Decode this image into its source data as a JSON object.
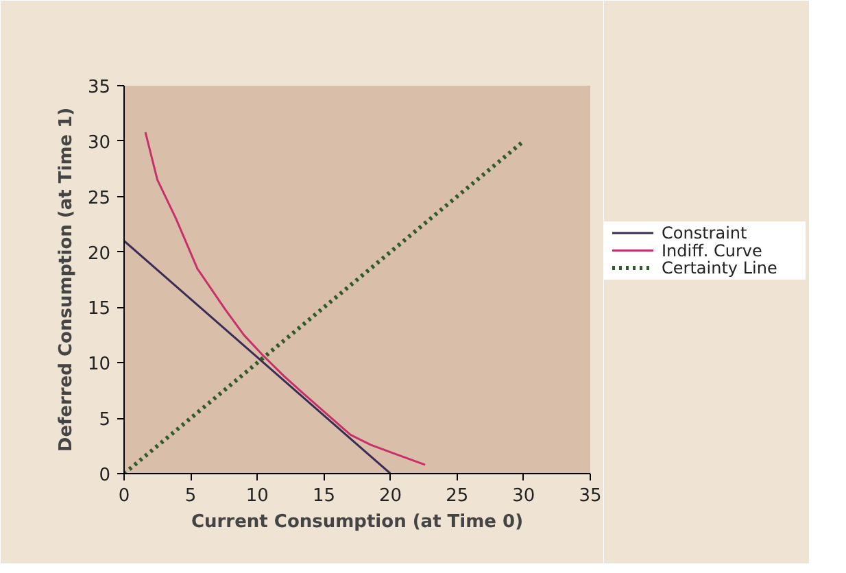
{
  "chart_data": {
    "type": "line",
    "xlabel": "Current Consumption (at Time 0)",
    "ylabel": "Deferred Consumption (at Time 1)",
    "xlim": [
      0,
      35
    ],
    "ylim": [
      0,
      35
    ],
    "xticks": [
      0,
      5,
      10,
      15,
      20,
      25,
      30,
      35
    ],
    "yticks": [
      0,
      5,
      10,
      15,
      20,
      25,
      30,
      35
    ],
    "grid": false,
    "legend": "right",
    "marker": "none",
    "series": [
      {
        "name": "Constraint",
        "color": "#3a2d55",
        "x": [
          0,
          20
        ],
        "values": [
          21,
          0
        ],
        "line_style": "solid"
      },
      {
        "name": "Indiff. Curve",
        "color": "#c8306a",
        "x": [
          1.6,
          2.5,
          3.9,
          5.5,
          7.6,
          9,
          10.4,
          12,
          13.3,
          15,
          17,
          18.5,
          20.3,
          22.6
        ],
        "values": [
          30.8,
          26.5,
          23,
          18.5,
          14.8,
          12.5,
          10.7,
          8.8,
          7.4,
          5.6,
          3.5,
          2.6,
          1.8,
          0.8
        ],
        "line_style": "solid"
      },
      {
        "name": "Certainty Line",
        "color": "#2f5a2a",
        "x": [
          0,
          30
        ],
        "values": [
          0,
          30
        ],
        "line_style": "dotted"
      }
    ]
  }
}
